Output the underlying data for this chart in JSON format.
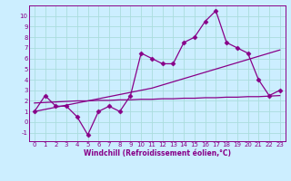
{
  "line1_x": [
    0,
    1,
    2,
    3,
    4,
    5,
    6,
    7,
    8,
    9,
    10,
    11,
    12,
    13,
    14,
    15,
    16,
    17,
    18,
    19,
    20,
    21,
    22,
    23
  ],
  "line1_y": [
    1,
    2.5,
    1.5,
    1.5,
    0.5,
    -1.2,
    1,
    1.5,
    1,
    2.5,
    6.5,
    6,
    5.5,
    5.5,
    7.5,
    8,
    9.5,
    10.5,
    7.5,
    7,
    6.5,
    4,
    2.5,
    3
  ],
  "line2_x": [
    0,
    1,
    2,
    3,
    4,
    5,
    6,
    7,
    8,
    9,
    10,
    11,
    12,
    13,
    14,
    15,
    16,
    17,
    18,
    19,
    20,
    21,
    22,
    23
  ],
  "line2_y": [
    1.8,
    1.85,
    1.9,
    1.95,
    2.0,
    2.0,
    2.05,
    2.05,
    2.1,
    2.1,
    2.15,
    2.15,
    2.2,
    2.2,
    2.25,
    2.25,
    2.3,
    2.3,
    2.35,
    2.35,
    2.4,
    2.4,
    2.45,
    2.5
  ],
  "line3_x": [
    0,
    1,
    2,
    3,
    4,
    5,
    6,
    7,
    8,
    9,
    10,
    11,
    12,
    13,
    14,
    15,
    16,
    17,
    18,
    19,
    20,
    21,
    22,
    23
  ],
  "line3_y": [
    1.0,
    1.2,
    1.4,
    1.6,
    1.8,
    2.0,
    2.2,
    2.4,
    2.6,
    2.8,
    3.0,
    3.2,
    3.5,
    3.8,
    4.1,
    4.4,
    4.7,
    5.0,
    5.3,
    5.6,
    5.9,
    6.2,
    6.5,
    6.8
  ],
  "bg_color": "#cceeff",
  "line_color": "#880088",
  "grid_color": "#aadddd",
  "xlabel": "Windchill (Refroidissement éolien,°C)",
  "ylim": [
    -1.8,
    11
  ],
  "xlim": [
    -0.5,
    23.5
  ],
  "xticks": [
    0,
    1,
    2,
    3,
    4,
    5,
    6,
    7,
    8,
    9,
    10,
    11,
    12,
    13,
    14,
    15,
    16,
    17,
    18,
    19,
    20,
    21,
    22,
    23
  ],
  "yticks": [
    -1,
    0,
    1,
    2,
    3,
    4,
    5,
    6,
    7,
    8,
    9,
    10
  ],
  "marker": "D",
  "markersize": 2.5,
  "linewidth": 0.9,
  "tick_fontsize": 5.0,
  "xlabel_fontsize": 5.5
}
